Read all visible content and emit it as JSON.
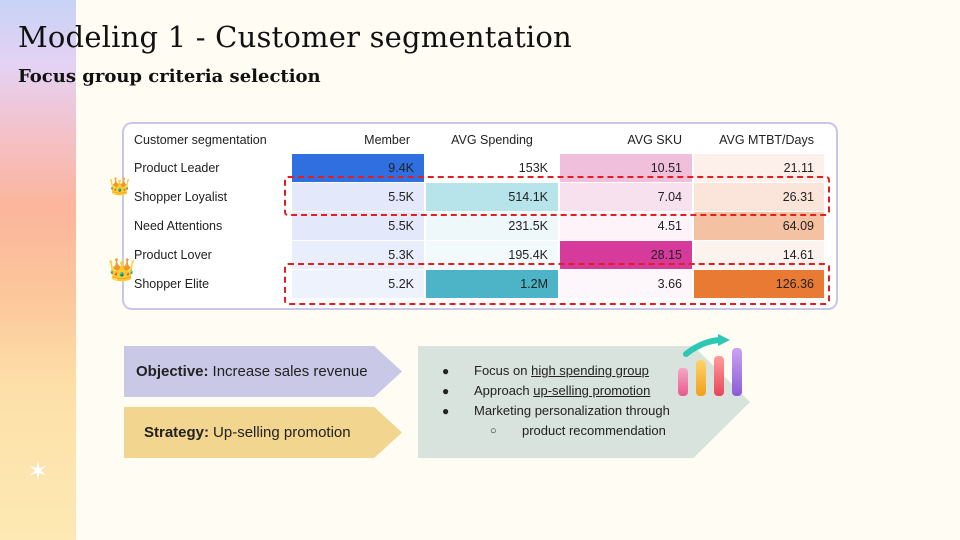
{
  "slide": {
    "title": "Modeling 1 - Customer segmentation",
    "subtitle": "Focus group criteria selection"
  },
  "table": {
    "headers": [
      "Customer segmentation",
      "Member",
      "AVG Spending",
      "AVG SKU",
      "AVG MTBT/Days"
    ],
    "rows": [
      {
        "name": "Product Leader",
        "member": "9.4K",
        "spending": "153K",
        "sku": "10.51",
        "mtbt": "21.11"
      },
      {
        "name": "Shopper Loyalist",
        "member": "5.5K",
        "spending": "514.1K",
        "sku": "7.04",
        "mtbt": "26.31"
      },
      {
        "name": "Need Attentions",
        "member": "5.5K",
        "spending": "231.5K",
        "sku": "4.51",
        "mtbt": "64.09"
      },
      {
        "name": "Product Lover",
        "member": "5.3K",
        "spending": "195.4K",
        "sku": "28.15",
        "mtbt": "14.61"
      },
      {
        "name": "Shopper Elite",
        "member": "5.2K",
        "spending": "1.2M",
        "sku": "3.66",
        "mtbt": "126.36"
      }
    ],
    "heat_colors": {
      "member": [
        "#2f6fe0",
        "#e3e9fb",
        "#e3e9fb",
        "#e9eefc",
        "#eef2fd"
      ],
      "spending": [
        "#ffffff",
        "#b7e3ea",
        "#eef8fa",
        "#f2fafb",
        "#4db4c8"
      ],
      "sku": [
        "#f0bfdc",
        "#f8e1ee",
        "#fdf3f8",
        "#d63a9b",
        "#fdf6fa"
      ],
      "mtbt": [
        "#fdf0ea",
        "#fbe5da",
        "#f4c1a2",
        "#fdf3ee",
        "#e97a34"
      ]
    },
    "highlight_color": "#e02020"
  },
  "objective": {
    "label": "Objective:",
    "text": "Increase sales revenue",
    "color": "#c9c8e6"
  },
  "strategy": {
    "label": "Strategy:",
    "text": "Up-selling promotion",
    "color": "#f2d58e"
  },
  "actions": {
    "b1_prefix": "Focus on ",
    "b1_link": "high spending group",
    "b2_prefix": "Approach ",
    "b2_link": "up-selling promotion",
    "b3": "Marketing personalization through",
    "b3_sub": "product recommendation"
  },
  "icons": [
    "crown-icon",
    "sparkle-icon",
    "bar-chart-icon"
  ]
}
